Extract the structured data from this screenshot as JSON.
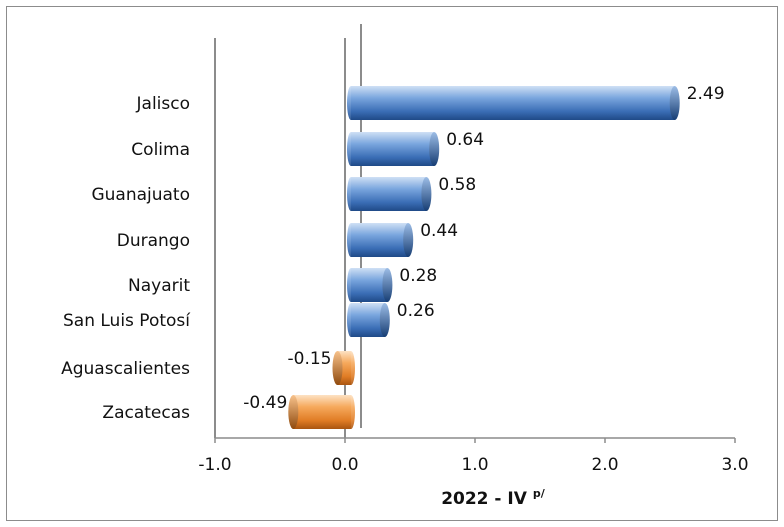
{
  "chart_data": {
    "type": "bar",
    "orientation": "horizontal",
    "categories": [
      "Jalisco",
      "Colima",
      "Guanajuato",
      "Durango",
      "Nayarit",
      "San Luis Potosí",
      "Aguascalientes",
      "Zacatecas"
    ],
    "values": [
      2.49,
      0.64,
      0.58,
      0.44,
      0.28,
      0.26,
      -0.15,
      -0.49
    ],
    "value_labels": [
      "2.49",
      "0.64",
      "0.58",
      "0.44",
      "0.28",
      "0.26",
      "-0.15",
      "-0.49"
    ],
    "xlim": [
      -1.0,
      3.0
    ],
    "x_ticks": [
      "-1.0",
      "0.0",
      "1.0",
      "2.0",
      "3.0"
    ],
    "xlabel": "2022 - IV",
    "xlabel_superscript": "p/",
    "title": "",
    "ylabel": "",
    "grid": false,
    "legend": "none",
    "colors": {
      "positive": "#4f81bd",
      "negative": "#f79646",
      "axis": "#8c8c8c"
    }
  }
}
